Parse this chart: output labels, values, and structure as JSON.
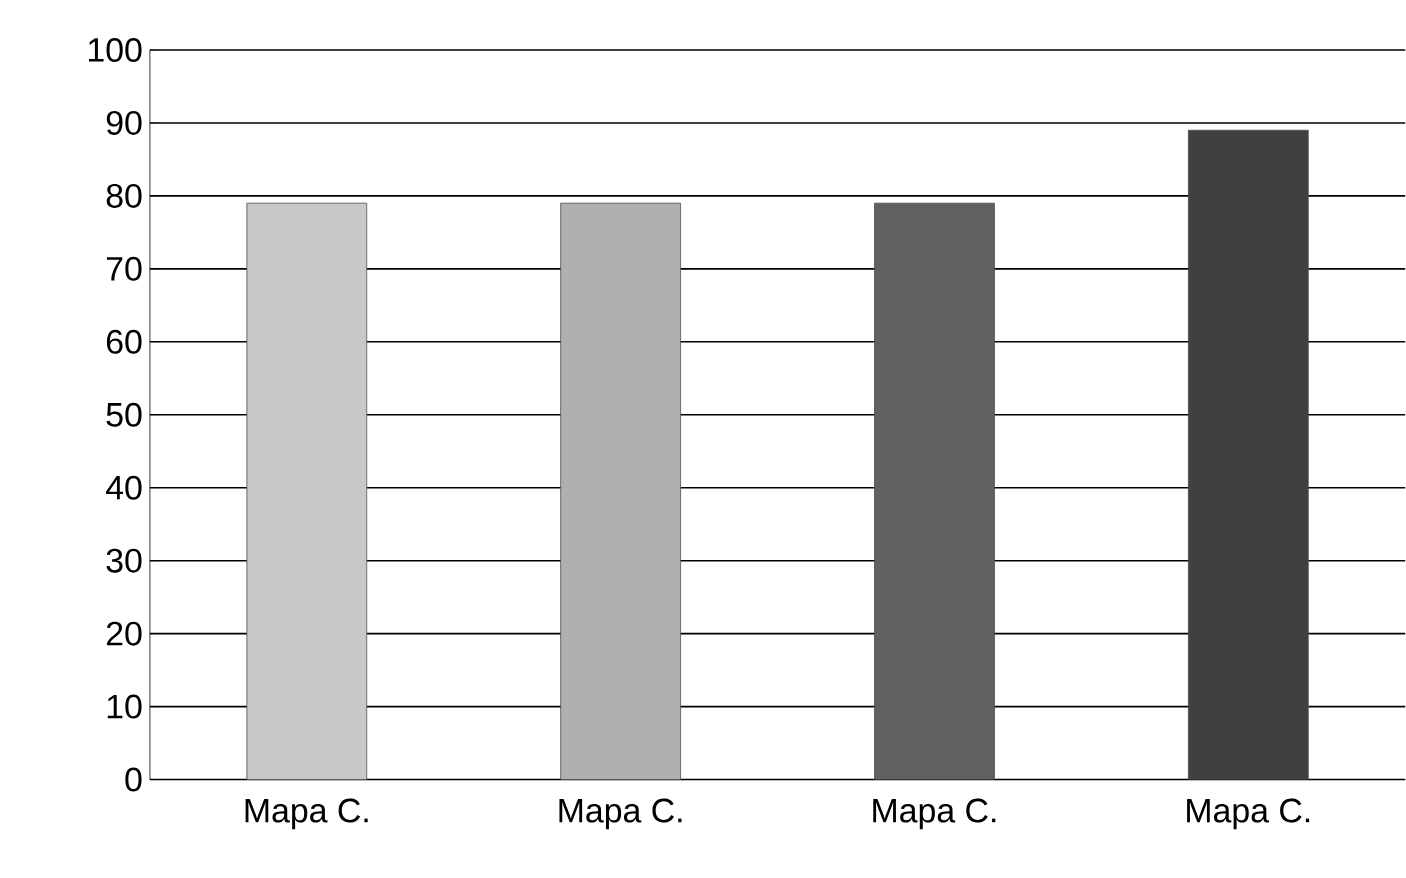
{
  "chart_data": {
    "type": "bar",
    "categories": [
      "Mapa C.",
      "Mapa C.",
      "Mapa C.",
      "Mapa C."
    ],
    "values": [
      79,
      79,
      79,
      89
    ],
    "colors": [
      "#c8c8c8",
      "#b0b0b0",
      "#606060",
      "#404040"
    ],
    "ylim": [
      0,
      100
    ],
    "yticks": [
      0,
      10,
      20,
      30,
      40,
      50,
      60,
      70,
      80,
      90,
      100
    ],
    "grid": "y"
  }
}
